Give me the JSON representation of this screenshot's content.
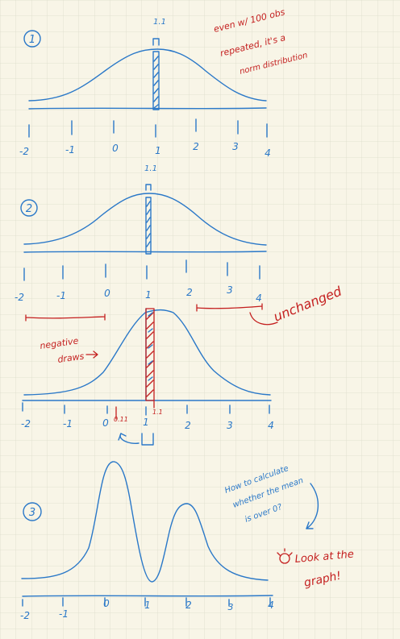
{
  "panels": [
    {
      "number": "1",
      "peak_label": "1.1",
      "ticks": [
        "-2",
        "-1",
        "0",
        "1",
        "2",
        "3",
        "4"
      ]
    },
    {
      "number": "2",
      "peak_label": "1.1",
      "ticks": [
        "-2",
        "-1",
        "0",
        "1",
        "2",
        "3",
        "4"
      ]
    },
    {
      "ticks": [
        "-2",
        "-1",
        "0",
        "1",
        "2",
        "3",
        "4"
      ]
    },
    {
      "number": "3",
      "ticks": [
        "-2",
        "-1",
        "0",
        "1",
        "2",
        "3",
        "4"
      ]
    }
  ],
  "notes": {
    "note1": [
      "even w/ 100 obs",
      "repeated, it's a",
      "norm distribution"
    ],
    "negative_draws": [
      "negative",
      "draws"
    ],
    "unchanged": "unchanged",
    "small_0_11": "0.11",
    "small_1_1": "1.1",
    "question": [
      "How to calculate",
      "whether the mean",
      "is over 0?"
    ],
    "answer": [
      "Look at the",
      "graph!"
    ]
  },
  "colors": {
    "background": "#f8f5e7",
    "grid": "#dcdccb",
    "pen_blue": "#2a78c8",
    "pen_red": "#c41f1f"
  }
}
